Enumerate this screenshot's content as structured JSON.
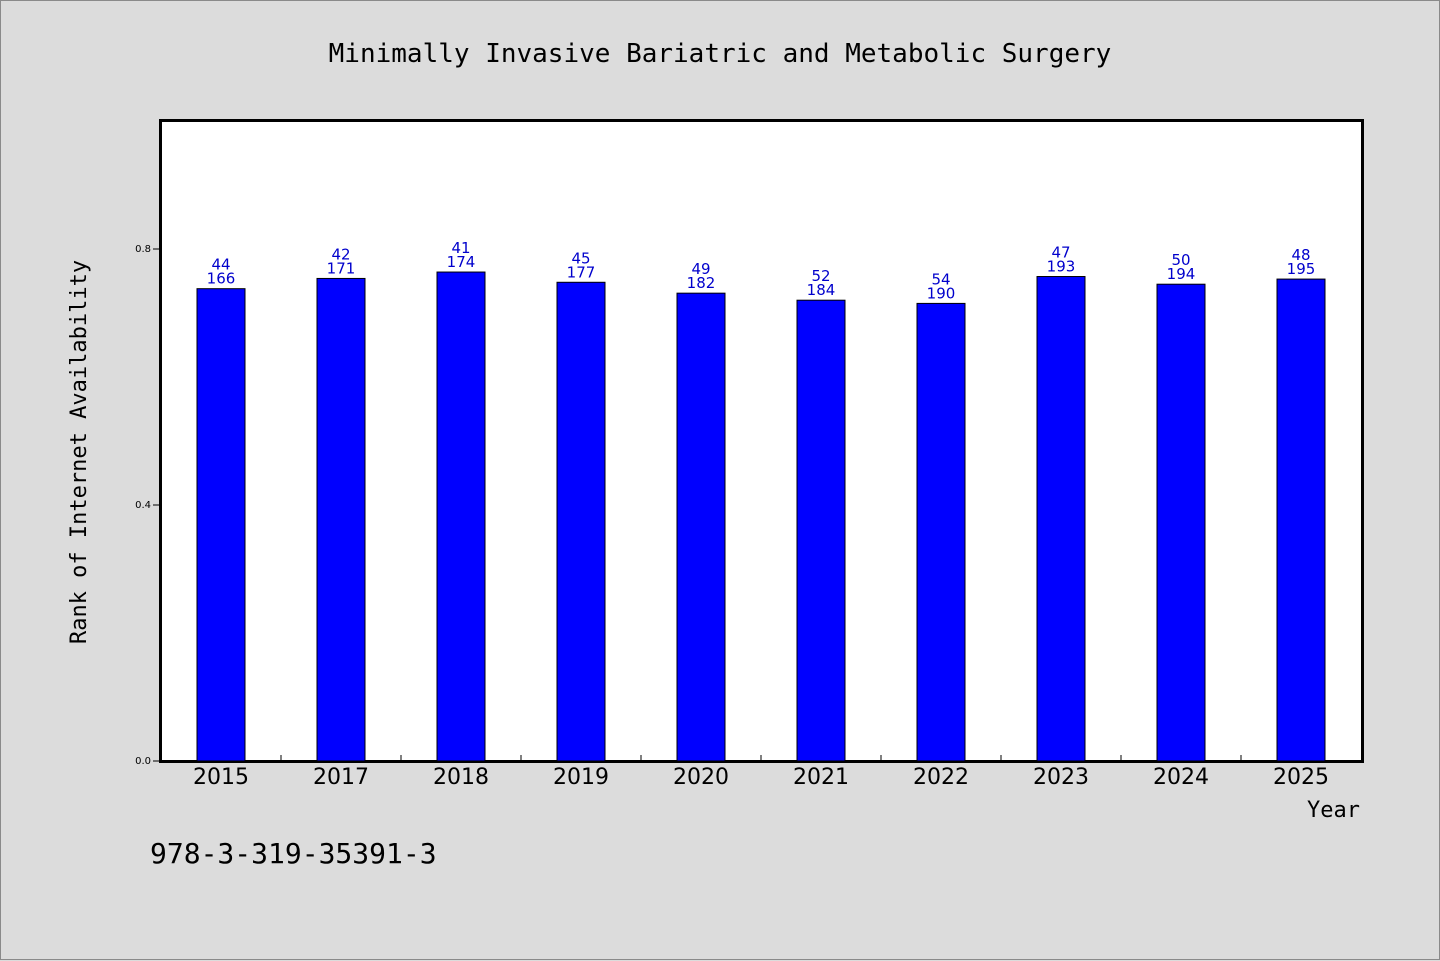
{
  "chart_data": {
    "type": "bar",
    "title": "Minimally Invasive Bariatric and Metabolic Surgery",
    "xlabel": "Year",
    "ylabel": "Rank of Internet Availability",
    "categories": [
      "2015",
      "2017",
      "2018",
      "2019",
      "2020",
      "2021",
      "2022",
      "2023",
      "2024",
      "2025"
    ],
    "values": [
      0.738,
      0.754,
      0.764,
      0.748,
      0.731,
      0.72,
      0.715,
      0.757,
      0.745,
      0.753
    ],
    "labels_top": [
      "44",
      "42",
      "41",
      "45",
      "49",
      "52",
      "54",
      "47",
      "50",
      "48"
    ],
    "labels_bottom": [
      "166",
      "171",
      "174",
      "177",
      "182",
      "184",
      "190",
      "193",
      "194",
      "195"
    ],
    "yticks": [
      "0.0",
      "0.4",
      "0.8"
    ],
    "ytick_values": [
      0.0,
      0.4,
      0.8
    ],
    "ylim": [
      0,
      1.0
    ],
    "grid": false,
    "bar_color": "#0000ff",
    "label_color": "#0000cc"
  },
  "footer": {
    "isbn": "978-3-319-35391-3"
  }
}
